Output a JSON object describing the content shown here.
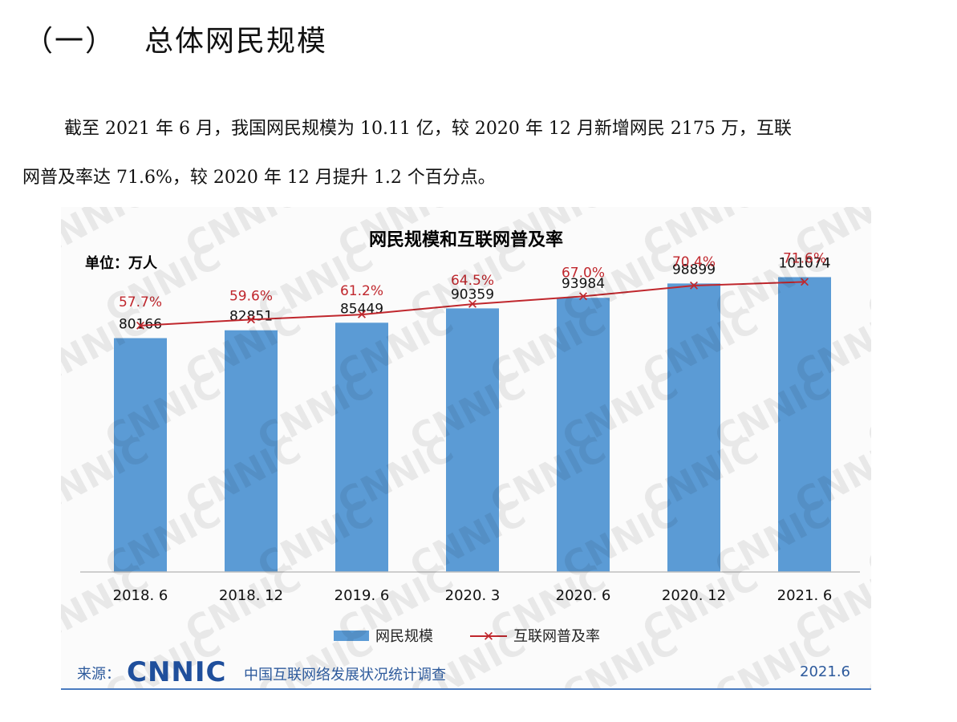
{
  "section": {
    "number": "（一）",
    "title": "总体网民规模"
  },
  "paragraph": {
    "line1": "截至 2021 年 6 月，我国网民规模为 10.11 亿，较 2020 年 12 月新增网民 2175 万，互联",
    "line2": "网普及率达 71.6%，较 2020 年 12 月提升 1.2 个百分点。"
  },
  "watermark": "CNNIC",
  "colors": {
    "bar": "#5b9bd5",
    "line": "#c0272d",
    "footer_text": "#2d5a9c",
    "logo": "#1f4f9c"
  },
  "chart_data": {
    "type": "bar",
    "title": "网民规模和互联网普及率",
    "unit_label": "单位：万人",
    "categories": [
      "2018. 6",
      "2018. 12",
      "2019. 6",
      "2020. 3",
      "2020. 6",
      "2020. 12",
      "2021. 6"
    ],
    "series": [
      {
        "name": "网民规模",
        "kind": "bar",
        "values": [
          80166,
          82851,
          85449,
          90359,
          93984,
          98899,
          101074
        ]
      },
      {
        "name": "互联网普及率",
        "kind": "line",
        "values": [
          57.7,
          59.6,
          61.2,
          64.5,
          67.0,
          70.4,
          71.6
        ],
        "labels": [
          "57.7%",
          "59.6%",
          "61.2%",
          "64.5%",
          "67.0%",
          "70.4%",
          "71.6%"
        ]
      }
    ],
    "bar_ylim": [
      0,
      110000
    ],
    "line_ylim": [
      0,
      120
    ],
    "legend": "bottom-center",
    "grid": false
  },
  "footer": {
    "source_label": "来源：",
    "logo_text": "CNNIC",
    "survey": "中国互联网络发展状况统计调查",
    "date": "2021.6"
  }
}
